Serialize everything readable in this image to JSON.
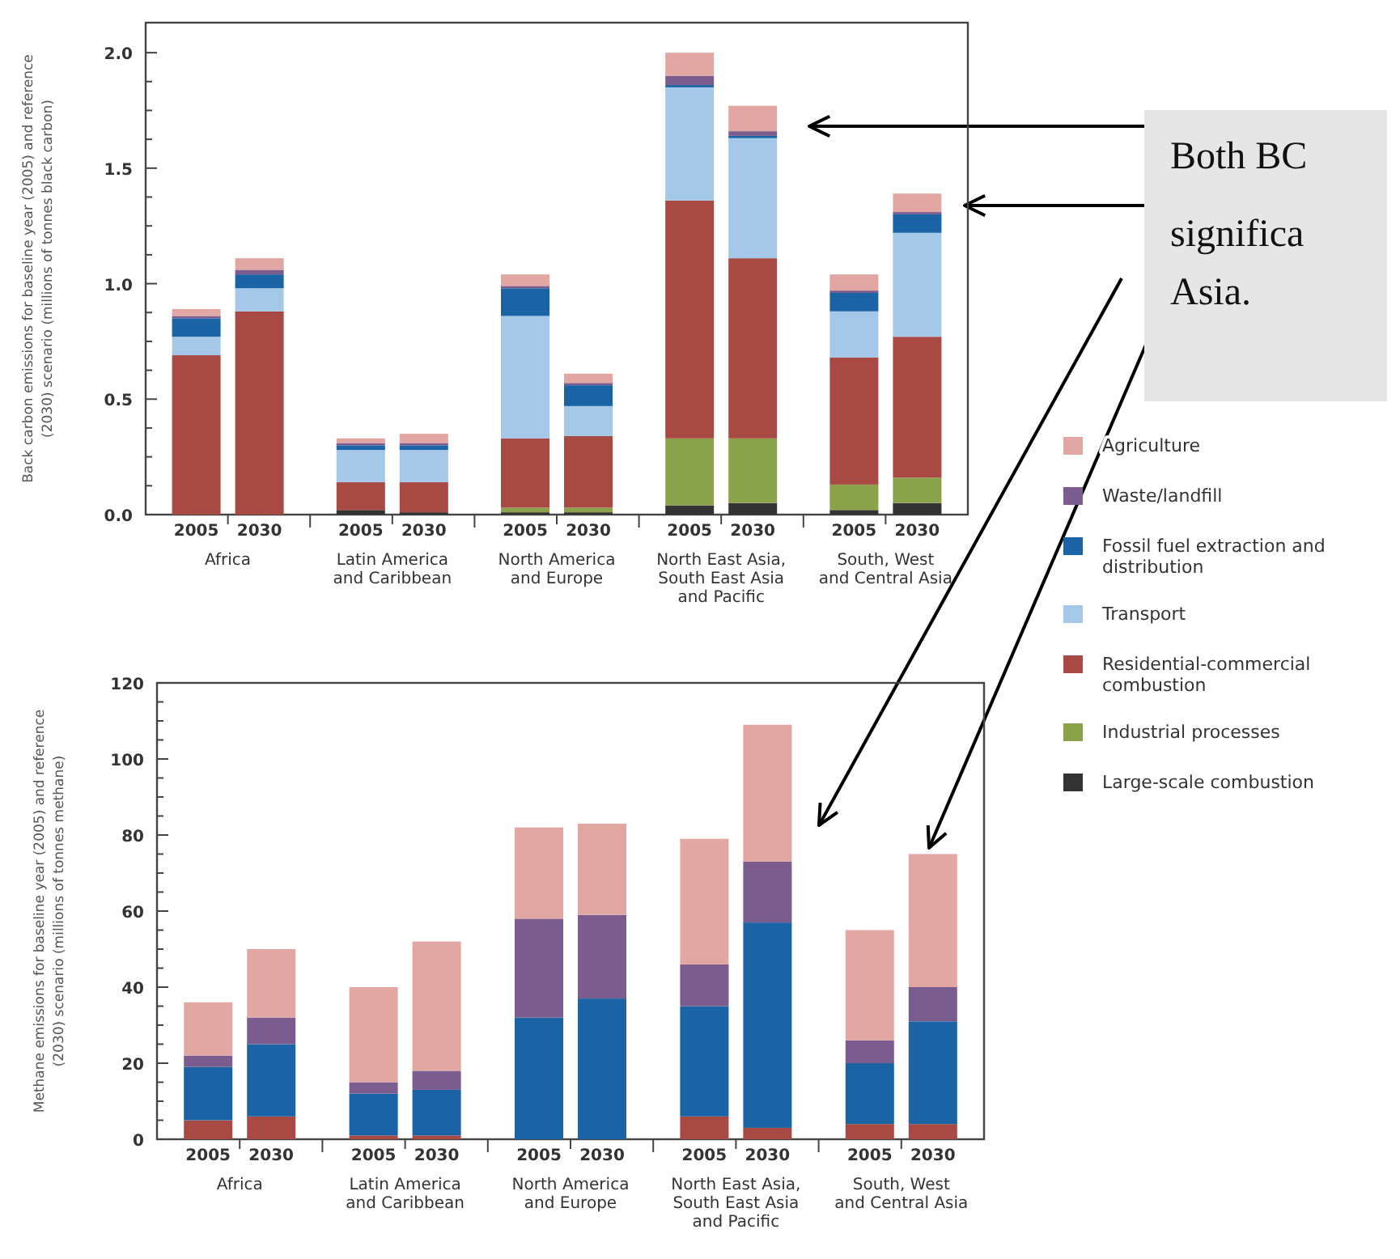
{
  "chart_data": [
    {
      "type": "bar",
      "stacked": true,
      "ylabel": "Back carbon emissions for baseline year (2005) and reference\n(2030) scenario (millions of tonnes black carbon)",
      "categories": [
        "2005",
        "2030",
        "2005",
        "2030",
        "2005",
        "2030",
        "2005",
        "2030",
        "2005",
        "2030"
      ],
      "annotations": [
        "Africa",
        "Latin America\nand Caribbean",
        "North America\nand Europe",
        "North East Asia,\nSouth East Asia\nand Pacific",
        "South, West\nand Central Asia"
      ],
      "ylim": [
        0,
        2.13
      ],
      "yticks": [
        {
          "value": 0,
          "label": "0.0"
        },
        {
          "value": 0.125,
          "label": null
        },
        {
          "value": 0.25,
          "label": null
        },
        {
          "value": 0.375,
          "label": null
        },
        {
          "value": 0.5,
          "label": "0.5"
        },
        {
          "value": 0.625,
          "label": null
        },
        {
          "value": 0.75,
          "label": null
        },
        {
          "value": 0.875,
          "label": null
        },
        {
          "value": 1,
          "label": "1.0"
        },
        {
          "value": 1.125,
          "label": null
        },
        {
          "value": 1.25,
          "label": null
        },
        {
          "value": 1.375,
          "label": null
        },
        {
          "value": 1.5,
          "label": "1.5"
        },
        {
          "value": 1.625,
          "label": null
        },
        {
          "value": 1.75,
          "label": null
        },
        {
          "value": 1.875,
          "label": null
        },
        {
          "value": 2,
          "label": "2.0"
        }
      ],
      "legend": "right",
      "series": [
        {
          "name": "Large-scale combustion",
          "color": "#333333",
          "values": [
            0,
            0,
            0.02,
            0.01,
            0.01,
            0.01,
            0.04,
            0.05,
            0.02,
            0.05
          ]
        },
        {
          "name": "Industrial processes",
          "color": "#8aa34b",
          "values": [
            0,
            0,
            0,
            0,
            0.02,
            0.02,
            0.29,
            0.28,
            0.11,
            0.11
          ]
        },
        {
          "name": "Residential-commercial\ncombustion",
          "color": "#a84a43",
          "values": [
            0.69,
            0.88,
            0.12,
            0.13,
            0.3,
            0.31,
            1.03,
            0.78,
            0.55,
            0.61
          ]
        },
        {
          "name": "Transport",
          "color": "#a6c8e8",
          "values": [
            0.08,
            0.1,
            0.14,
            0.14,
            0.53,
            0.13,
            0.49,
            0.52,
            0.2,
            0.45
          ]
        },
        {
          "name": "Fossil fuel extraction and\ndistribution",
          "color": "#1a64a6",
          "values": [
            0.08,
            0.06,
            0.02,
            0.02,
            0.12,
            0.09,
            0.01,
            0.01,
            0.08,
            0.08
          ]
        },
        {
          "name": "Waste/landfill",
          "color": "#7a5c8e",
          "values": [
            0.01,
            0.02,
            0.01,
            0.01,
            0.01,
            0.01,
            0.04,
            0.02,
            0.01,
            0.01
          ]
        },
        {
          "name": "Agriculture",
          "color": "#e3a7a3",
          "values": [
            0.03,
            0.05,
            0.02,
            0.04,
            0.05,
            0.04,
            0.1,
            0.11,
            0.07,
            0.08
          ]
        }
      ]
    },
    {
      "type": "bar",
      "stacked": true,
      "ylabel": "Methane emissions for baseline year (2005) and reference\n(2030) scenario (millions of tonnes methane)",
      "categories": [
        "2005",
        "2030",
        "2005",
        "2030",
        "2005",
        "2030",
        "2005",
        "2030",
        "2005",
        "2030"
      ],
      "annotations": [
        "Africa",
        "Latin America\nand Caribbean",
        "North America\nand Europe",
        "North East Asia,\nSouth East Asia\nand Pacific",
        "South, West\nand Central Asia"
      ],
      "ylim": [
        0,
        120
      ],
      "yticks": [
        0,
        {
          "value": 5,
          "label": null
        },
        {
          "value": 10,
          "label": null
        },
        {
          "value": 15,
          "label": null
        },
        20,
        {
          "value": 25,
          "label": null
        },
        {
          "value": 30,
          "label": null
        },
        {
          "value": 35,
          "label": null
        },
        40,
        {
          "value": 45,
          "label": null
        },
        {
          "value": 50,
          "label": null
        },
        {
          "value": 55,
          "label": null
        },
        60,
        {
          "value": 65,
          "label": null
        },
        {
          "value": 70,
          "label": null
        },
        {
          "value": 75,
          "label": null
        },
        80,
        {
          "value": 85,
          "label": null
        },
        {
          "value": 90,
          "label": null
        },
        {
          "value": 95,
          "label": null
        },
        100,
        {
          "value": 105,
          "label": null
        },
        {
          "value": 110,
          "label": null
        },
        {
          "value": 115,
          "label": null
        },
        120
      ],
      "series": [
        {
          "color": "#a84a43",
          "values": [
            5,
            6,
            1,
            1,
            0,
            0,
            6,
            3,
            4,
            4
          ]
        },
        {
          "color": "#1a64a6",
          "values": [
            14,
            19,
            11,
            12,
            32,
            37,
            29,
            54,
            16,
            27
          ]
        },
        {
          "color": "#7a5c8e",
          "values": [
            3,
            7,
            3,
            5,
            26,
            22,
            11,
            16,
            6,
            9
          ]
        },
        {
          "color": "#e3a7a3",
          "values": [
            14,
            18,
            25,
            34,
            24,
            24,
            33,
            36,
            29,
            35
          ]
        }
      ]
    },
    {
      "type": "other",
      "annotations": [
        "Both BC",
        "significa",
        "Asia."
      ]
    }
  ]
}
